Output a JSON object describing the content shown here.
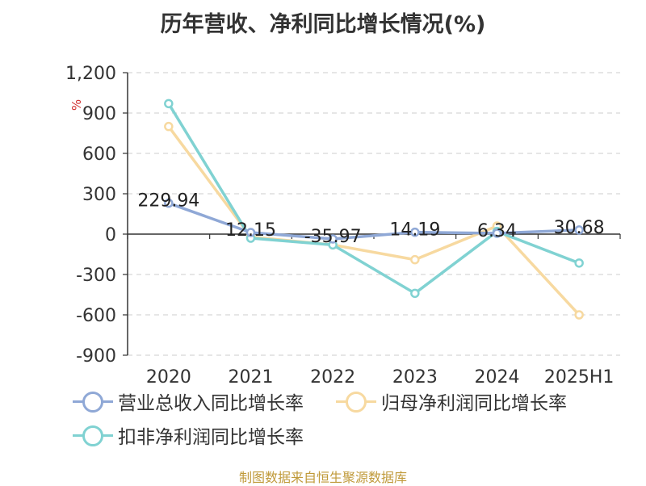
{
  "chart_data": {
    "type": "line",
    "title": "历年营收、净利同比增长情况(%)",
    "ylabel": "%",
    "categories": [
      "2020",
      "2021",
      "2022",
      "2023",
      "2024",
      "2025H1"
    ],
    "ylim": [
      -900,
      1200
    ],
    "yticks": [
      1200,
      900,
      600,
      300,
      0,
      -300,
      -600,
      -900
    ],
    "ytick_labels": [
      "1,200",
      "900",
      "600",
      "300",
      "0",
      "-300",
      "-600",
      "-900"
    ],
    "grid": true,
    "legend_position": "bottom",
    "series": [
      {
        "name": "营业总收入同比增长率",
        "color": "#8fa8d6",
        "values": [
          229.94,
          12.15,
          -35.97,
          14.19,
          6.34,
          30.68
        ],
        "labels": [
          "229.94",
          "12.15",
          "-35.97",
          "14.19",
          "6.34",
          "30.68"
        ]
      },
      {
        "name": "归母净利润同比增长率",
        "color": "#f7d9a0",
        "values": [
          800,
          -20,
          -80,
          -190,
          60,
          -600
        ]
      },
      {
        "name": "扣非净利润同比增长率",
        "color": "#80d2d2",
        "values": [
          970,
          -30,
          -80,
          -440,
          20,
          -215
        ]
      }
    ]
  },
  "footer": "制图数据来自恒生聚源数据库"
}
